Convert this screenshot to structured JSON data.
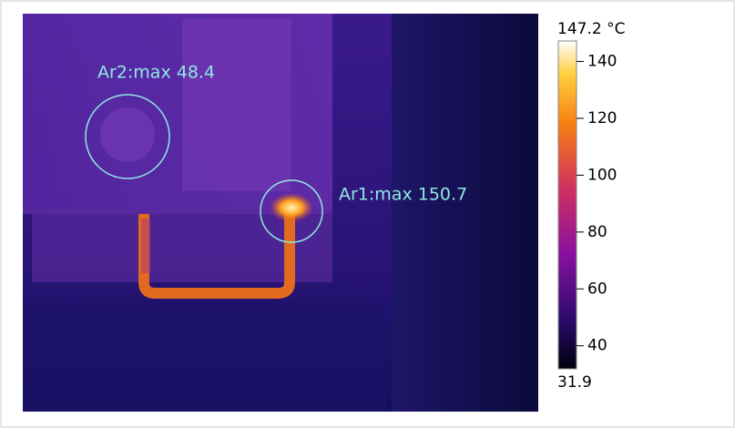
{
  "image": {
    "annotations": [
      {
        "label": "Ar2:max 48.4"
      },
      {
        "label": "Ar1:max 150.7"
      }
    ]
  },
  "colorbar": {
    "max": {
      "value": 147.2,
      "label": "147.2 °C"
    },
    "min": {
      "value": 31.9,
      "label": "31.9"
    },
    "ticks": [
      40,
      60,
      80,
      100,
      120,
      140
    ]
  }
}
